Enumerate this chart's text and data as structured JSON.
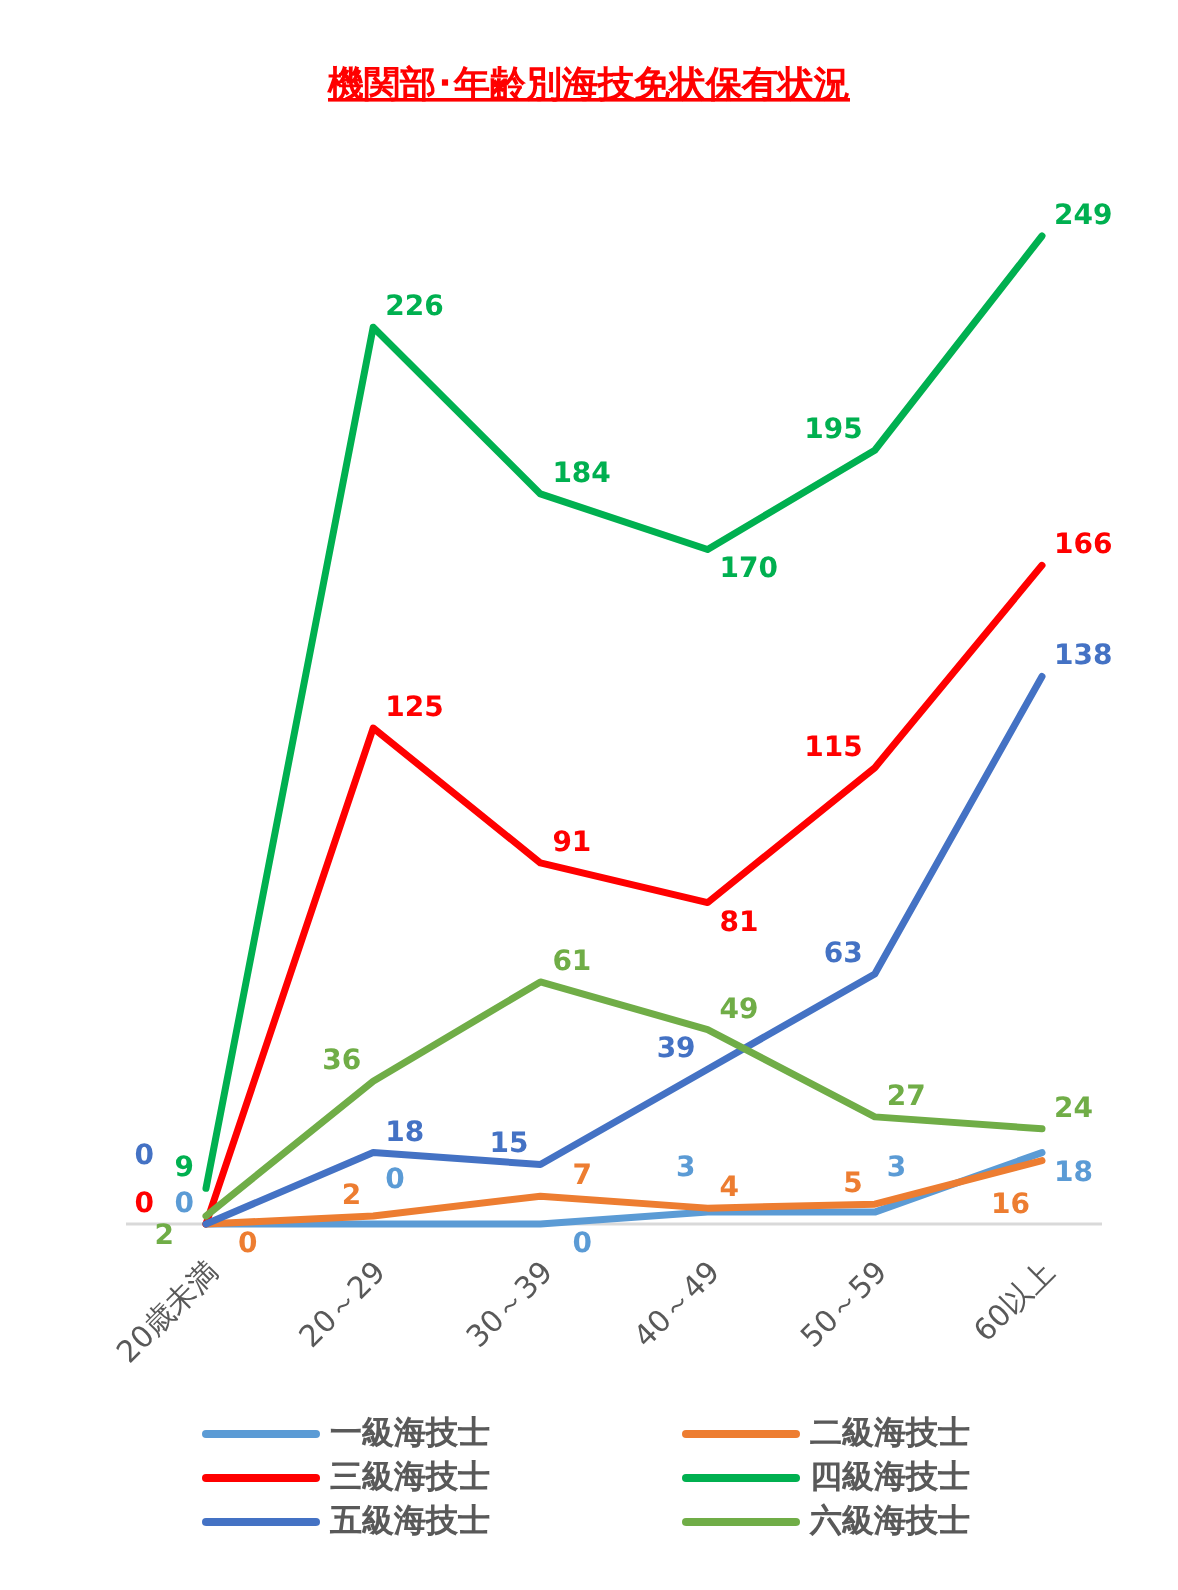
{
  "chart_data": {
    "type": "line",
    "title": "機関部･年齢別海技免状保有状況",
    "categories": [
      "20歳未満",
      "20～29",
      "30～39",
      "40～49",
      "50～59",
      "60以上"
    ],
    "series": [
      {
        "name": "一級海技士",
        "color": "#5b9bd5",
        "values": [
          0,
          0,
          0,
          3,
          3,
          18
        ]
      },
      {
        "name": "二級海技士",
        "color": "#ed7d31",
        "values": [
          0,
          2,
          7,
          4,
          5,
          16
        ]
      },
      {
        "name": "三級海技士",
        "color": "#ff0000",
        "values": [
          0,
          125,
          91,
          81,
          115,
          166
        ]
      },
      {
        "name": "四級海技士",
        "color": "#00b050",
        "values": [
          9,
          226,
          184,
          170,
          195,
          249
        ]
      },
      {
        "name": "五級海技士",
        "color": "#4472c4",
        "values": [
          0,
          18,
          15,
          39,
          63,
          138
        ]
      },
      {
        "name": "六級海技士",
        "color": "#70ad47",
        "values": [
          2,
          36,
          61,
          49,
          27,
          24
        ]
      }
    ],
    "data_labels": true,
    "legend": "bottom",
    "marker": "none",
    "line_style": "solid"
  }
}
